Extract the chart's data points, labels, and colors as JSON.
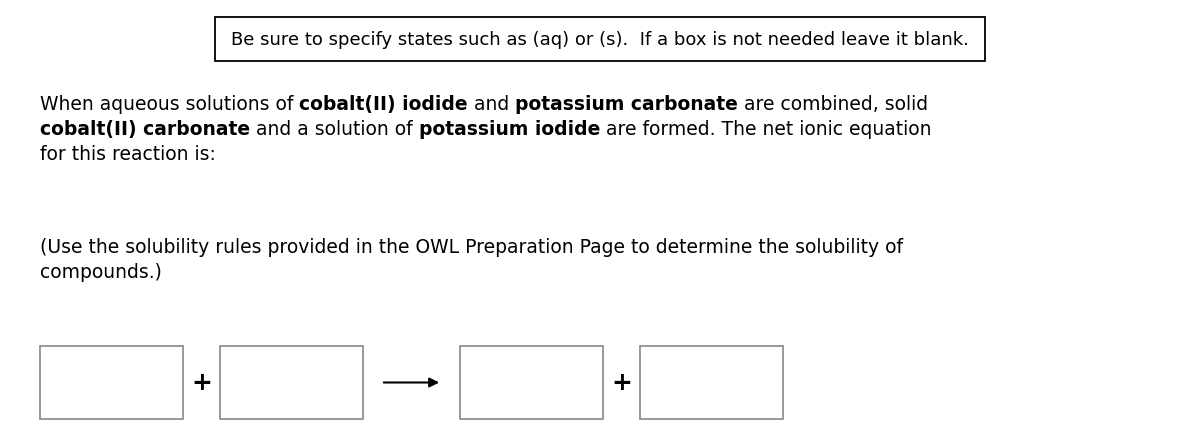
{
  "bg_color": "#ffffff",
  "instruction_box_text": "Be sure to specify states such as (aq) or (s).  If a box is not needed leave it blank.",
  "font_size": 13.5,
  "font_family": "DejaVu Sans",
  "para1_line1_parts": [
    {
      "text": "When aqueous solutions of ",
      "bold": false
    },
    {
      "text": "cobalt(II) iodide",
      "bold": true
    },
    {
      "text": " and ",
      "bold": false
    },
    {
      "text": "potassium carbonate",
      "bold": true
    },
    {
      "text": " are combined, solid",
      "bold": false
    }
  ],
  "para1_line2_parts": [
    {
      "text": "cobalt(II) carbonate",
      "bold": true
    },
    {
      "text": " and a solution of ",
      "bold": false
    },
    {
      "text": "potassium iodide",
      "bold": true
    },
    {
      "text": " are formed. The net ionic equation",
      "bold": false
    }
  ],
  "para1_line3": "for this reaction is:",
  "para2_line1": "(Use the solubility rules provided in the OWL Preparation Page to determine the solubility of",
  "para2_line2": "compounds.)"
}
